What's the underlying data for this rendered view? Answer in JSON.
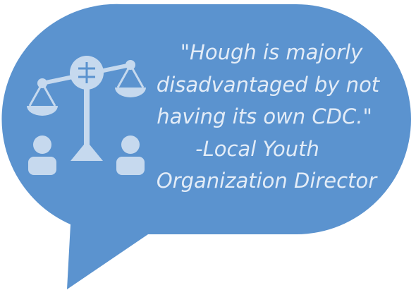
{
  "quote": {
    "lines": [
      "\"Hough is majorly",
      "disadvantaged by not",
      "having its own CDC.\"",
      "-Local Youth",
      "Organization Director"
    ]
  }
}
